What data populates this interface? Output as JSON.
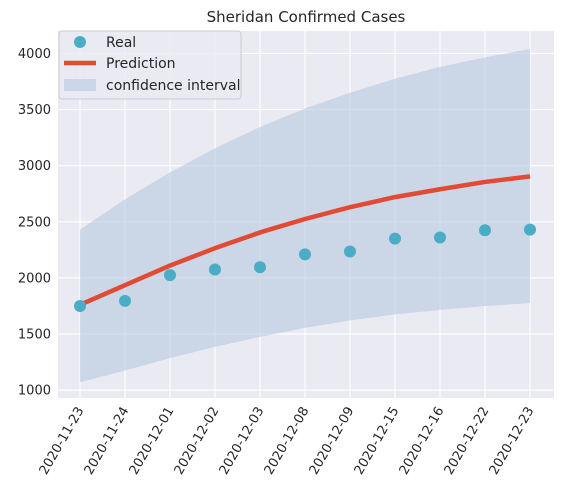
{
  "chart_data": {
    "type": "line",
    "title": "Sheridan Confirmed Cases",
    "xlabel": "",
    "ylabel": "",
    "categories": [
      "2020-11-23",
      "2020-11-24",
      "2020-12-01",
      "2020-12-02",
      "2020-12-03",
      "2020-12-08",
      "2020-12-09",
      "2020-12-15",
      "2020-12-16",
      "2020-12-22",
      "2020-12-23"
    ],
    "ylim": [
      930,
      4200
    ],
    "yticks": [
      1000,
      1500,
      2000,
      2500,
      3000,
      3500,
      4000
    ],
    "grid": true,
    "legend_position": "top-left",
    "series": [
      {
        "name": "Real",
        "kind": "scatter",
        "color": "#4bacc6",
        "values": [
          1750,
          1795,
          2025,
          2075,
          2095,
          2210,
          2235,
          2350,
          2360,
          2425,
          2430
        ]
      },
      {
        "name": "Prediction",
        "kind": "line",
        "color": "#e24a33",
        "values": [
          1760,
          1935,
          2110,
          2265,
          2405,
          2525,
          2630,
          2720,
          2790,
          2855,
          2905
        ]
      },
      {
        "name": "confidence interval",
        "kind": "band",
        "color": "#b0c4de",
        "lower": [
          1070,
          1175,
          1285,
          1385,
          1475,
          1555,
          1620,
          1675,
          1715,
          1750,
          1775
        ],
        "upper": [
          2430,
          2700,
          2940,
          3155,
          3345,
          3510,
          3650,
          3775,
          3880,
          3965,
          4040
        ]
      }
    ]
  }
}
